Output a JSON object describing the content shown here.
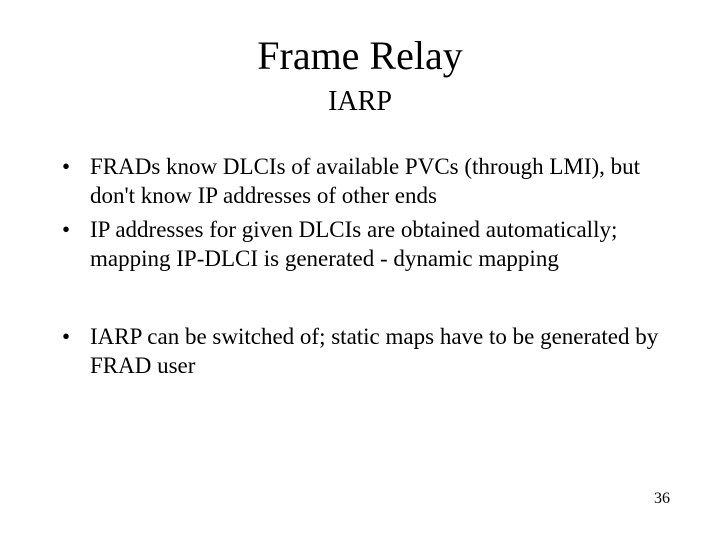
{
  "title": "Frame Relay",
  "subtitle": "IARP",
  "bullets_a": [
    "FRADs know DLCIs of available PVCs (through LMI), but don't know IP addresses of other ends",
    "IP addresses for given DLCIs are obtained automatically; mapping IP-DLCI is generated  - dynamic mapping"
  ],
  "bullets_b": [
    "IARP can be switched of; static maps have to be generated by FRAD user"
  ],
  "page_number": "36",
  "style": {
    "background_color": "#ffffff",
    "text_color": "#000000",
    "font_family": "Times New Roman",
    "title_fontsize": 40,
    "subtitle_fontsize": 28,
    "body_fontsize": 23,
    "pagenum_fontsize": 16,
    "slide_width": 720,
    "slide_height": 540
  }
}
